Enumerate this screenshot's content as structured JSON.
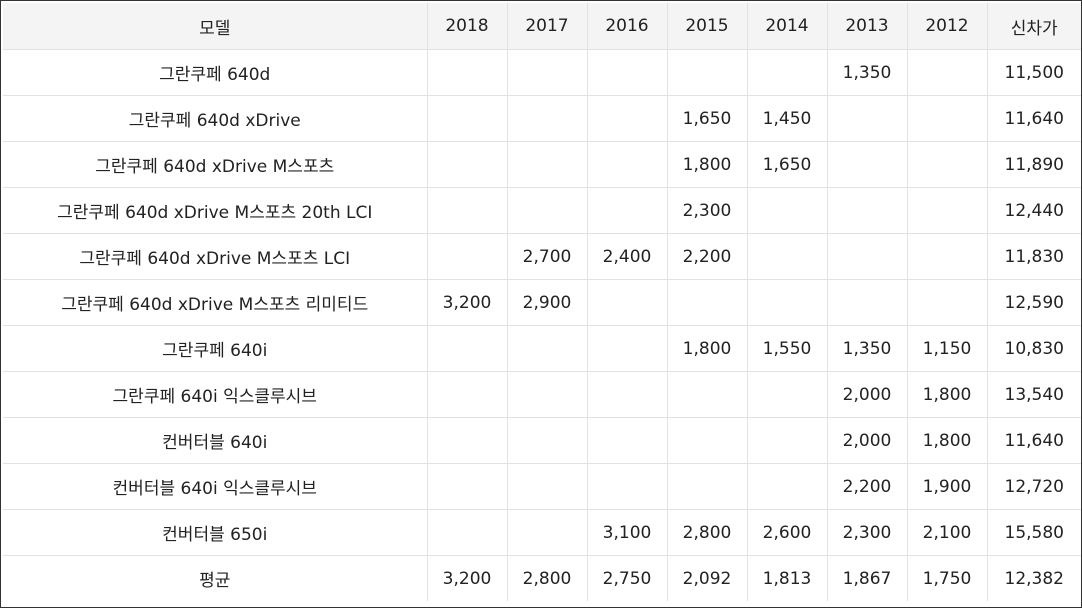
{
  "table": {
    "headers": [
      "모델",
      "2018",
      "2017",
      "2016",
      "2015",
      "2014",
      "2013",
      "2012",
      "신차가"
    ],
    "rows": [
      [
        "그란쿠페 640d",
        "",
        "",
        "",
        "",
        "",
        "1,350",
        "",
        "11,500"
      ],
      [
        "그란쿠페 640d xDrive",
        "",
        "",
        "",
        "1,650",
        "1,450",
        "",
        "",
        "11,640"
      ],
      [
        "그란쿠페 640d xDrive M스포츠",
        "",
        "",
        "",
        "1,800",
        "1,650",
        "",
        "",
        "11,890"
      ],
      [
        "그란쿠페 640d xDrive M스포츠 20th LCI",
        "",
        "",
        "",
        "2,300",
        "",
        "",
        "",
        "12,440"
      ],
      [
        "그란쿠페 640d xDrive M스포츠 LCI",
        "",
        "2,700",
        "2,400",
        "2,200",
        "",
        "",
        "",
        "11,830"
      ],
      [
        "그란쿠페 640d xDrive M스포츠 리미티드",
        "3,200",
        "2,900",
        "",
        "",
        "",
        "",
        "",
        "12,590"
      ],
      [
        "그란쿠페 640i",
        "",
        "",
        "",
        "1,800",
        "1,550",
        "1,350",
        "1,150",
        "10,830"
      ],
      [
        "그란쿠페 640i 익스클루시브",
        "",
        "",
        "",
        "",
        "",
        "2,000",
        "1,800",
        "13,540"
      ],
      [
        "컨버터블 640i",
        "",
        "",
        "",
        "",
        "",
        "2,000",
        "1,800",
        "11,640"
      ],
      [
        "컨버터블 640i 익스클루시브",
        "",
        "",
        "",
        "",
        "",
        "2,200",
        "1,900",
        "12,720"
      ],
      [
        "컨버터블 650i",
        "",
        "",
        "3,100",
        "2,800",
        "2,600",
        "2,300",
        "2,100",
        "15,580"
      ],
      [
        "평균",
        "3,200",
        "2,800",
        "2,750",
        "2,092",
        "1,813",
        "1,867",
        "1,750",
        "12,382"
      ]
    ]
  }
}
